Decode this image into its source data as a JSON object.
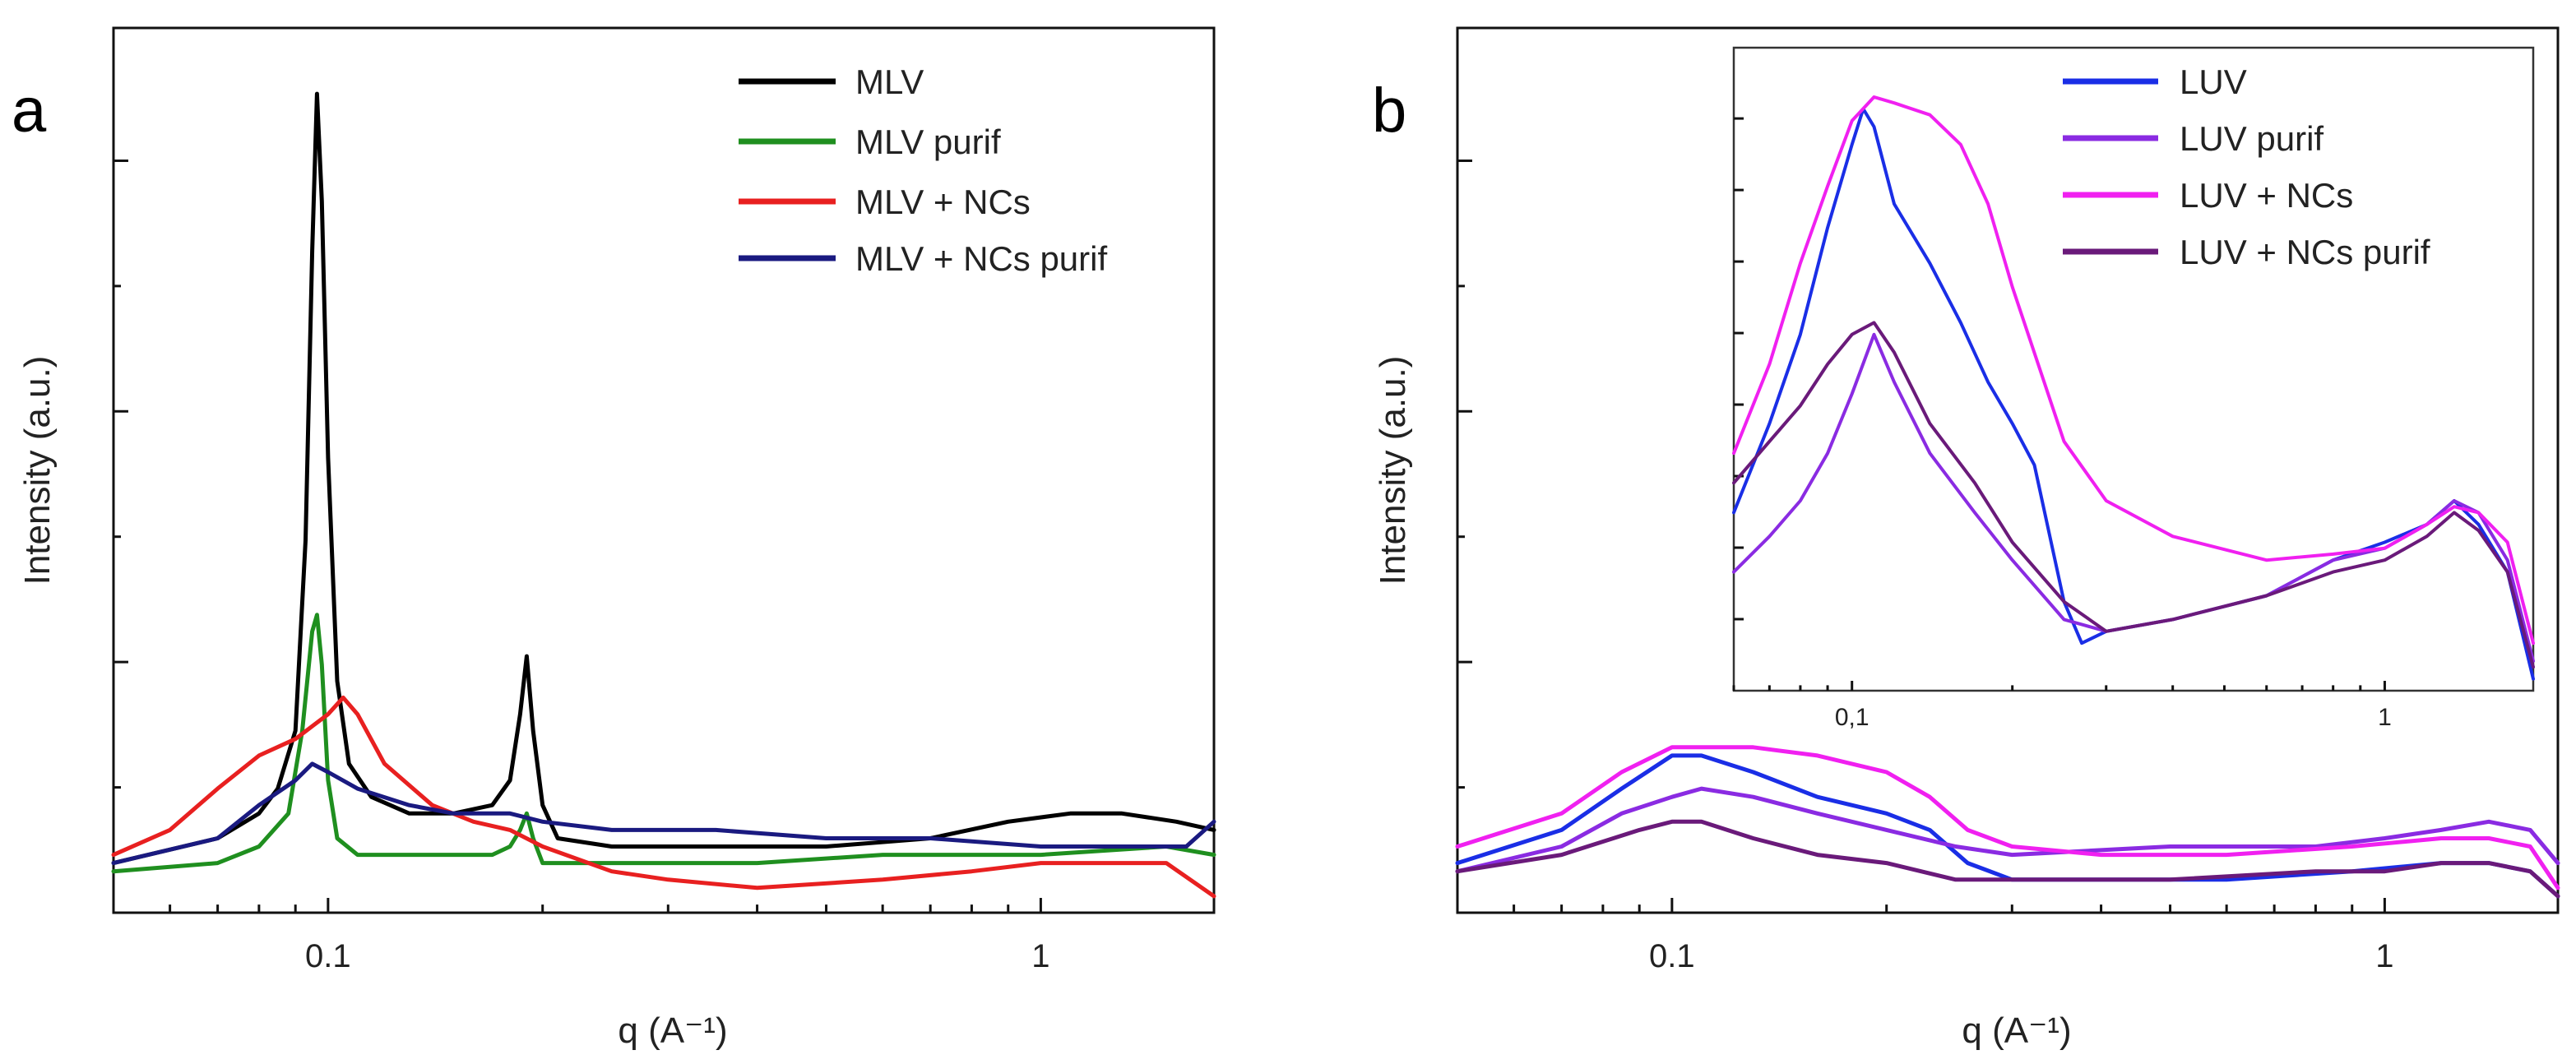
{
  "chart_data": [
    {
      "panel": "a",
      "type": "line",
      "xscale": "log",
      "xlabel": "q (A⁻¹)",
      "ylabel": "Intensity (a.u.)",
      "xlim": [
        0.05,
        1.75
      ],
      "ylim": [
        0,
        1.0
      ],
      "x_ticks": [
        0.1,
        1
      ],
      "x_tick_labels": [
        "0.1",
        "1"
      ],
      "legend_position": "top-right",
      "series": [
        {
          "name": "MLV",
          "color": "#000000",
          "x": [
            0.05,
            0.07,
            0.08,
            0.085,
            0.09,
            0.093,
            0.095,
            0.0965,
            0.098,
            0.1,
            0.103,
            0.107,
            0.115,
            0.13,
            0.15,
            0.17,
            0.18,
            0.186,
            0.19,
            0.194,
            0.2,
            0.21,
            0.25,
            0.35,
            0.5,
            0.7,
            0.9,
            1.1,
            1.3,
            1.55,
            1.75
          ],
          "values": [
            0.06,
            0.09,
            0.12,
            0.15,
            0.22,
            0.45,
            0.8,
            0.99,
            0.86,
            0.55,
            0.28,
            0.18,
            0.14,
            0.12,
            0.12,
            0.13,
            0.16,
            0.24,
            0.31,
            0.22,
            0.13,
            0.09,
            0.08,
            0.08,
            0.08,
            0.09,
            0.11,
            0.12,
            0.12,
            0.11,
            0.1
          ]
        },
        {
          "name": "MLV purif",
          "color": "#1f8f1f",
          "x": [
            0.05,
            0.07,
            0.08,
            0.088,
            0.092,
            0.095,
            0.0965,
            0.098,
            0.1,
            0.103,
            0.11,
            0.13,
            0.15,
            0.17,
            0.18,
            0.186,
            0.19,
            0.194,
            0.2,
            0.25,
            0.4,
            0.6,
            1.0,
            1.5,
            1.75
          ],
          "values": [
            0.05,
            0.06,
            0.08,
            0.12,
            0.22,
            0.34,
            0.36,
            0.3,
            0.16,
            0.09,
            0.07,
            0.07,
            0.07,
            0.07,
            0.08,
            0.1,
            0.12,
            0.09,
            0.06,
            0.06,
            0.06,
            0.07,
            0.07,
            0.08,
            0.07
          ]
        },
        {
          "name": "MLV + NCs",
          "color": "#e82020",
          "x": [
            0.05,
            0.06,
            0.07,
            0.08,
            0.09,
            0.1,
            0.105,
            0.11,
            0.12,
            0.14,
            0.16,
            0.18,
            0.2,
            0.25,
            0.3,
            0.4,
            0.6,
            0.8,
            1.0,
            1.2,
            1.5,
            1.75
          ],
          "values": [
            0.07,
            0.1,
            0.15,
            0.19,
            0.21,
            0.24,
            0.26,
            0.24,
            0.18,
            0.13,
            0.11,
            0.1,
            0.08,
            0.05,
            0.04,
            0.03,
            0.04,
            0.05,
            0.06,
            0.06,
            0.06,
            0.02
          ]
        },
        {
          "name": "MLV + NCs purif",
          "color": "#1a1a80",
          "x": [
            0.05,
            0.07,
            0.08,
            0.09,
            0.095,
            0.1,
            0.11,
            0.13,
            0.15,
            0.18,
            0.2,
            0.25,
            0.35,
            0.5,
            0.7,
            1.0,
            1.3,
            1.6,
            1.75
          ],
          "values": [
            0.06,
            0.09,
            0.13,
            0.16,
            0.18,
            0.17,
            0.15,
            0.13,
            0.12,
            0.12,
            0.11,
            0.1,
            0.1,
            0.09,
            0.09,
            0.08,
            0.08,
            0.08,
            0.11
          ]
        }
      ]
    },
    {
      "panel": "b",
      "type": "line",
      "xscale": "log",
      "xlabel": "q (A⁻¹)",
      "ylabel": "Intensity (a.u.)",
      "xlim": [
        0.05,
        1.75
      ],
      "ylim": [
        0,
        1.0
      ],
      "x_ticks": [
        0.1,
        1
      ],
      "x_tick_labels": [
        "0.1",
        "1"
      ],
      "legend_position": "inset top-right",
      "series": [
        {
          "name": "LUV",
          "color": "#1a2ee6",
          "x": [
            0.05,
            0.07,
            0.085,
            0.1,
            0.11,
            0.13,
            0.16,
            0.2,
            0.23,
            0.26,
            0.3,
            0.4,
            0.6,
            0.9,
            1.2,
            1.4,
            1.6,
            1.75
          ],
          "values": [
            0.06,
            0.1,
            0.15,
            0.19,
            0.19,
            0.17,
            0.14,
            0.12,
            0.1,
            0.06,
            0.04,
            0.04,
            0.04,
            0.05,
            0.06,
            0.06,
            0.05,
            0.02
          ]
        },
        {
          "name": "LUV purif",
          "color": "#8a2be2",
          "x": [
            0.05,
            0.07,
            0.085,
            0.1,
            0.11,
            0.13,
            0.16,
            0.2,
            0.25,
            0.3,
            0.5,
            0.8,
            1.0,
            1.2,
            1.4,
            1.6,
            1.75
          ],
          "values": [
            0.05,
            0.08,
            0.12,
            0.14,
            0.15,
            0.14,
            0.12,
            0.1,
            0.08,
            0.07,
            0.08,
            0.08,
            0.09,
            0.1,
            0.11,
            0.1,
            0.06
          ]
        },
        {
          "name": "LUV + NCs",
          "color": "#f020f0",
          "x": [
            0.05,
            0.07,
            0.085,
            0.1,
            0.11,
            0.13,
            0.16,
            0.2,
            0.23,
            0.26,
            0.3,
            0.4,
            0.6,
            0.9,
            1.2,
            1.4,
            1.6,
            1.75
          ],
          "values": [
            0.08,
            0.12,
            0.17,
            0.2,
            0.2,
            0.2,
            0.19,
            0.17,
            0.14,
            0.1,
            0.08,
            0.07,
            0.07,
            0.08,
            0.09,
            0.09,
            0.08,
            0.03
          ]
        },
        {
          "name": "LUV + NCs purif",
          "color": "#6a1a7a",
          "x": [
            0.05,
            0.07,
            0.09,
            0.1,
            0.11,
            0.13,
            0.16,
            0.2,
            0.25,
            0.3,
            0.5,
            0.8,
            1.0,
            1.2,
            1.4,
            1.6,
            1.75
          ],
          "values": [
            0.05,
            0.07,
            0.1,
            0.11,
            0.11,
            0.09,
            0.07,
            0.06,
            0.04,
            0.04,
            0.04,
            0.05,
            0.05,
            0.06,
            0.06,
            0.05,
            0.02
          ]
        }
      ]
    }
  ],
  "inset": {
    "panel": "b",
    "type": "line",
    "xscale": "log",
    "xlim": [
      0.06,
      1.9
    ],
    "ylim": [
      0,
      1.0
    ],
    "x_ticks": [
      0.1,
      1
    ],
    "x_tick_labels": [
      "0,1",
      "1"
    ],
    "series": [
      {
        "name": "LUV",
        "color": "#1a2ee6",
        "x": [
          0.06,
          0.07,
          0.08,
          0.09,
          0.1,
          0.105,
          0.11,
          0.12,
          0.14,
          0.16,
          0.18,
          0.2,
          0.22,
          0.25,
          0.27,
          0.3,
          0.4,
          0.6,
          0.8,
          1.0,
          1.2,
          1.35,
          1.5,
          1.7,
          1.9
        ],
        "values": [
          0.3,
          0.45,
          0.6,
          0.78,
          0.92,
          0.98,
          0.95,
          0.82,
          0.72,
          0.62,
          0.52,
          0.45,
          0.38,
          0.15,
          0.08,
          0.1,
          0.12,
          0.16,
          0.22,
          0.25,
          0.28,
          0.32,
          0.28,
          0.2,
          0.02
        ]
      },
      {
        "name": "LUV purif",
        "color": "#8a2be2",
        "x": [
          0.06,
          0.07,
          0.08,
          0.09,
          0.1,
          0.11,
          0.12,
          0.14,
          0.17,
          0.2,
          0.25,
          0.3,
          0.4,
          0.6,
          0.8,
          1.0,
          1.2,
          1.35,
          1.5,
          1.7,
          1.9
        ],
        "values": [
          0.2,
          0.26,
          0.32,
          0.4,
          0.5,
          0.6,
          0.52,
          0.4,
          0.3,
          0.22,
          0.12,
          0.1,
          0.12,
          0.16,
          0.22,
          0.24,
          0.28,
          0.32,
          0.3,
          0.22,
          0.05
        ]
      },
      {
        "name": "LUV + NCs",
        "color": "#f020f0",
        "x": [
          0.06,
          0.07,
          0.08,
          0.09,
          0.1,
          0.11,
          0.12,
          0.14,
          0.16,
          0.18,
          0.2,
          0.25,
          0.3,
          0.4,
          0.6,
          0.8,
          1.0,
          1.2,
          1.35,
          1.5,
          1.7,
          1.9
        ],
        "values": [
          0.4,
          0.55,
          0.72,
          0.85,
          0.96,
          1.0,
          0.99,
          0.97,
          0.92,
          0.82,
          0.68,
          0.42,
          0.32,
          0.26,
          0.22,
          0.23,
          0.24,
          0.28,
          0.31,
          0.3,
          0.25,
          0.08
        ]
      },
      {
        "name": "LUV + NCs purif",
        "color": "#6a1a7a",
        "x": [
          0.06,
          0.07,
          0.08,
          0.09,
          0.1,
          0.11,
          0.12,
          0.14,
          0.17,
          0.2,
          0.25,
          0.3,
          0.4,
          0.6,
          0.8,
          1.0,
          1.2,
          1.35,
          1.5,
          1.7,
          1.9
        ],
        "values": [
          0.35,
          0.42,
          0.48,
          0.55,
          0.6,
          0.62,
          0.57,
          0.45,
          0.35,
          0.25,
          0.15,
          0.1,
          0.12,
          0.16,
          0.2,
          0.22,
          0.26,
          0.3,
          0.27,
          0.2,
          0.04
        ]
      }
    ]
  }
}
